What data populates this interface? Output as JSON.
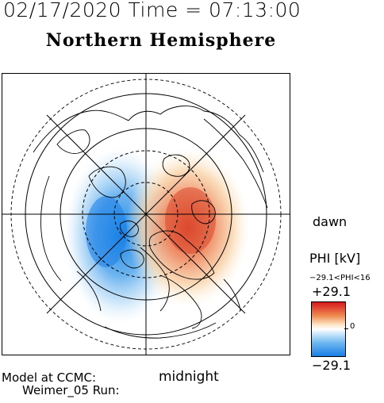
{
  "header": {
    "timestamp": "02/17/2020 Time = 07:13:00",
    "hemisphere": "Northern Hemisphere"
  },
  "map": {
    "side_label": "dawn",
    "bottom_label": "midnight",
    "projection": "polar-north",
    "potential_cells": [
      {
        "sign": "positive",
        "side": "dawn",
        "color": "#e04a30"
      },
      {
        "sign": "negative",
        "side": "dusk",
        "color": "#1e88e5"
      }
    ]
  },
  "legend": {
    "quantity": "PHI [kV]",
    "range_text": "−29.1<PHI<16",
    "max": "+29.1",
    "mid": "0",
    "min": "−29.1",
    "colors": {
      "max": "#d7191c",
      "mid": "#ffffff",
      "min": "#1a7ee6"
    }
  },
  "footer": {
    "model_at": "Model at CCMC:",
    "run": "Weimer_05 Run:"
  }
}
